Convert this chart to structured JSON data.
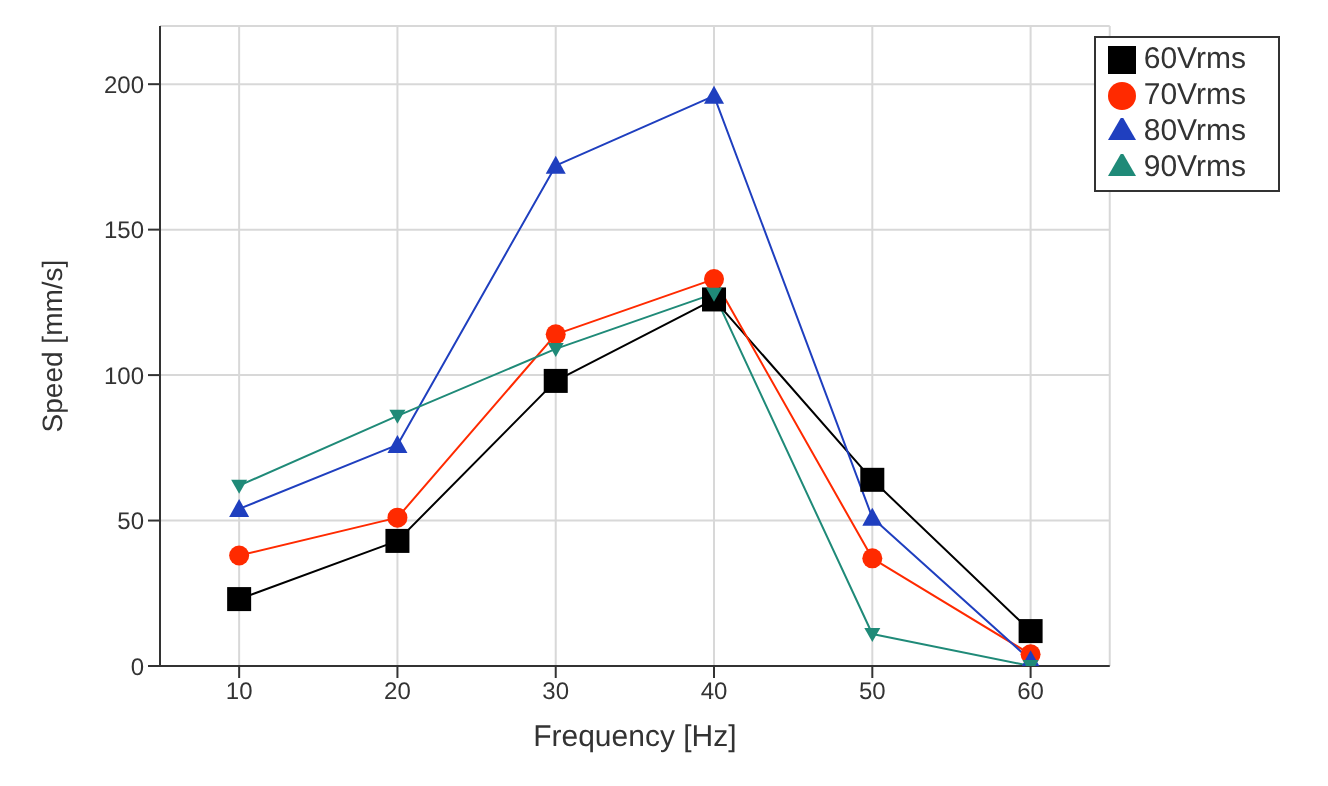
{
  "chart_data": {
    "type": "line",
    "xlabel": "Frequency [Hz]",
    "ylabel": "Speed [mm/s]",
    "x": [
      10,
      20,
      30,
      40,
      50,
      60
    ],
    "series": [
      {
        "name": "60Vrms",
        "color": "#000000",
        "marker": "square",
        "values": [
          23,
          43,
          98,
          126,
          64,
          12
        ]
      },
      {
        "name": "70Vrms",
        "color": "#ff2a00",
        "marker": "circle",
        "values": [
          38,
          51,
          114,
          133,
          37,
          4
        ]
      },
      {
        "name": "80Vrms",
        "color": "#1f3fbf",
        "marker": "triangle",
        "values": [
          54,
          76,
          172,
          196,
          51,
          2
        ]
      },
      {
        "name": "90Vrms",
        "color": "#1f8a78",
        "marker": "triangle-down",
        "values": [
          62,
          86,
          109,
          128,
          11,
          0
        ]
      }
    ],
    "xlim": [
      5,
      65
    ],
    "xticks": [
      10,
      20,
      30,
      40,
      50,
      60
    ],
    "ylim": [
      0,
      220
    ],
    "yticks": [
      0,
      50,
      100,
      150,
      200
    ],
    "grid": true,
    "legend": "top right"
  }
}
